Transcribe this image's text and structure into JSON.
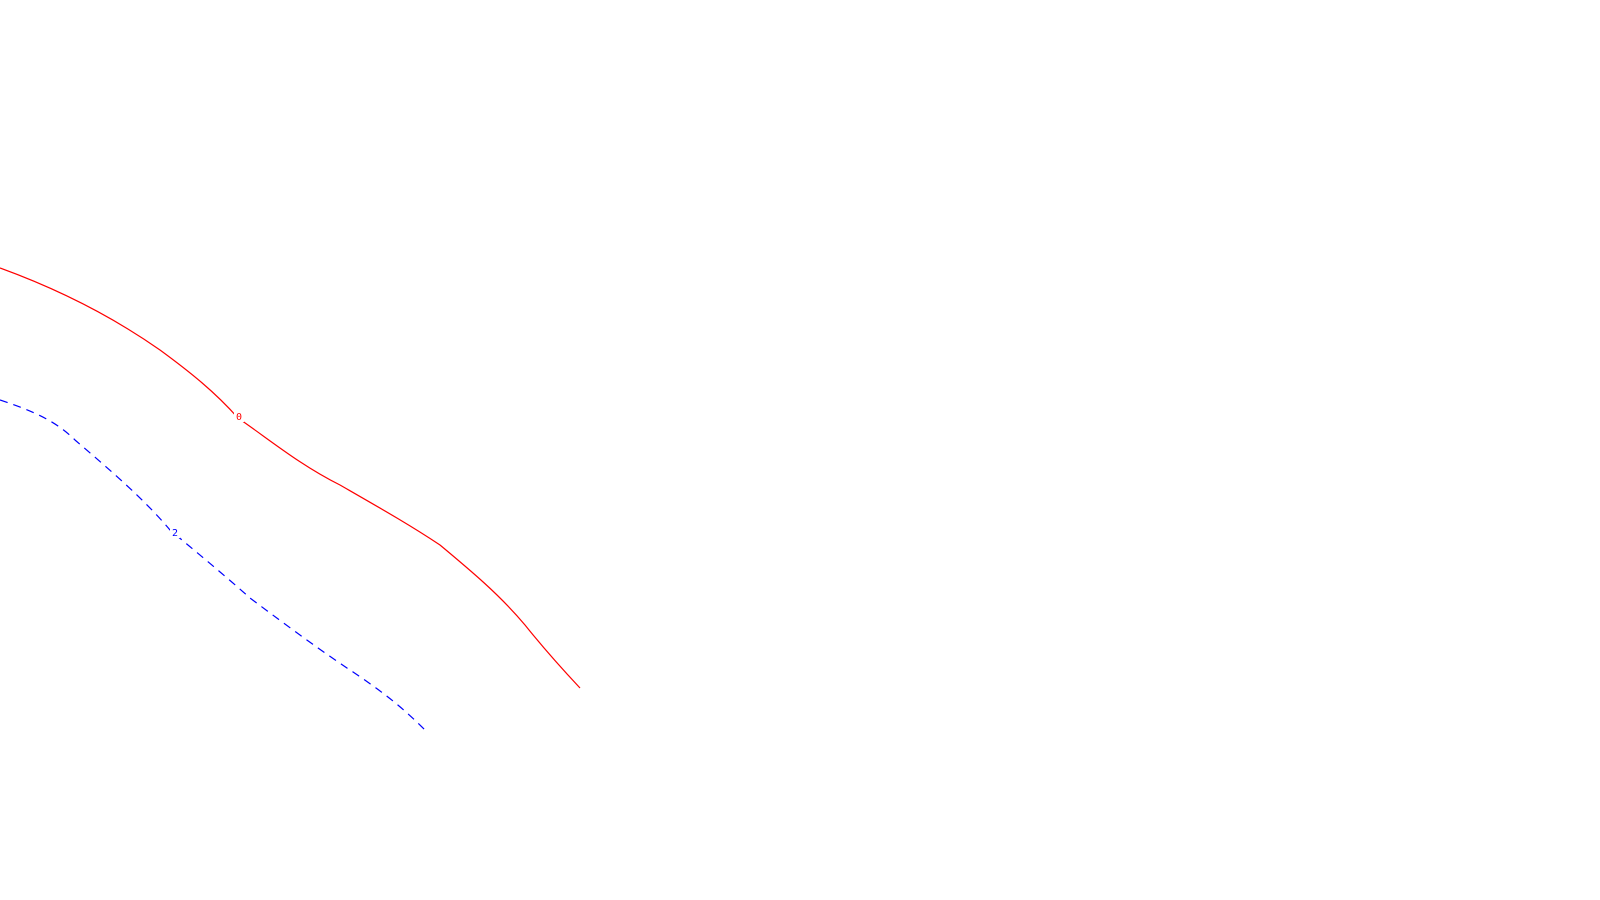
{
  "contours": [
    {
      "id": "zero",
      "level_label": "0",
      "color": "#ff0000",
      "style": "solid"
    },
    {
      "id": "two",
      "level_label": "2",
      "color": "#0000ff",
      "style": "dashed"
    }
  ]
}
